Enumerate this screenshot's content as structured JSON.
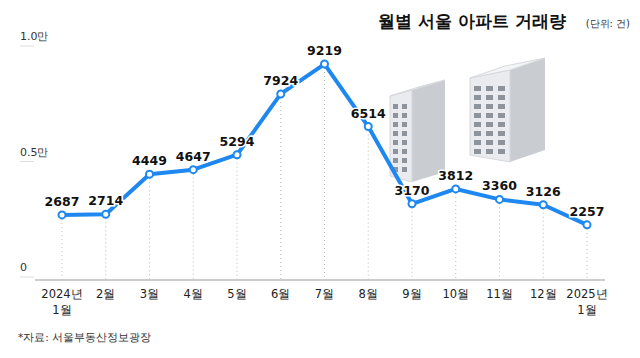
{
  "chart_data": {
    "type": "line",
    "title": "월별 서울 아파트 거래량",
    "subtitle": "(단위: 건)",
    "source": "*자료: 서울부동산정보광장",
    "categories": [
      "2024년\n1월",
      "2월",
      "3월",
      "4월",
      "5월",
      "6월",
      "7월",
      "8월",
      "9월",
      "10월",
      "11월",
      "12월",
      "2025년\n1월"
    ],
    "values": [
      2687,
      2714,
      4449,
      4647,
      5294,
      7924,
      9219,
      6514,
      3170,
      3812,
      3360,
      3126,
      2257
    ],
    "color": "#1e88f0",
    "marker": "circle",
    "data_labels": true,
    "ylim": [
      0,
      10000
    ],
    "yticks": [
      0,
      {
        "value": 5000,
        "label": "0.5만"
      },
      {
        "value": 10000,
        "label": "1.0만"
      }
    ]
  }
}
